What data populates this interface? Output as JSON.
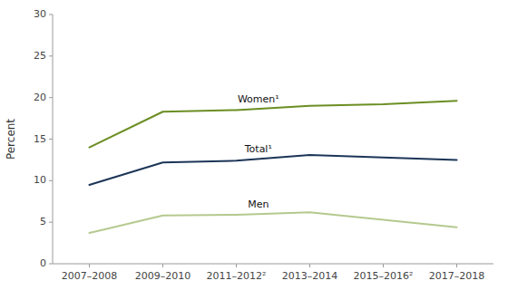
{
  "chart_data": {
    "type": "line",
    "y_label": "Percent",
    "categories": [
      "2007–2008",
      "2009–2010",
      "2011–2012²",
      "2013–2014",
      "2015–2016²",
      "2017–2018"
    ],
    "series": [
      {
        "name": "Women¹",
        "color": "#6b8e23",
        "values": [
          14.0,
          18.3,
          18.5,
          19.0,
          19.2,
          19.6
        ]
      },
      {
        "name": "Total¹",
        "color": "#1c3557",
        "values": [
          9.5,
          12.2,
          12.4,
          13.1,
          12.8,
          12.5
        ]
      },
      {
        "name": "Men",
        "color": "#b5c98e",
        "values": [
          3.7,
          5.8,
          5.9,
          6.2,
          5.3,
          4.4
        ]
      }
    ],
    "ylim": [
      0,
      30
    ],
    "yticks": [
      0,
      5,
      10,
      15,
      20,
      25,
      30
    ],
    "grid": false
  }
}
